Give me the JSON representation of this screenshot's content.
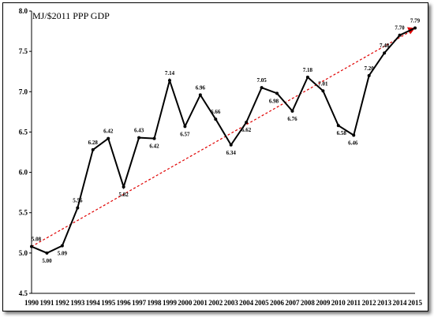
{
  "chart_data": {
    "type": "line",
    "title": "MJ/$2011 PPP GDP",
    "x": [
      "1990",
      "1991",
      "1992",
      "1993",
      "1994",
      "1995",
      "1996",
      "1997",
      "1998",
      "1999",
      "2000",
      "2001",
      "2002",
      "2003",
      "2004",
      "2005",
      "2006",
      "2007",
      "2008",
      "2009",
      "2010",
      "2011",
      "2012",
      "2013",
      "2014",
      "2015"
    ],
    "series": [
      {
        "values": [
          5.08,
          5.0,
          5.09,
          5.56,
          6.28,
          6.42,
          5.82,
          6.43,
          6.42,
          7.14,
          6.57,
          6.96,
          6.66,
          6.34,
          6.62,
          7.05,
          6.98,
          6.76,
          7.18,
          7.01,
          6.58,
          6.46,
          7.2,
          7.48,
          7.7,
          7.79
        ],
        "labels": [
          "5.08",
          "5.00",
          "5.09",
          "5.56",
          "6.28",
          "6.42",
          "5.82",
          "6.43",
          "6.42",
          "7.14",
          "6.57",
          "6.96",
          "6.66",
          "6.34",
          "6.62",
          "7.05",
          "6.98",
          "6.76",
          "7.18",
          "7.01",
          "6.58",
          "6.46",
          "7.20",
          "7.48",
          "7.70",
          "7.79"
        ],
        "color": "#000000"
      }
    ],
    "trend": {
      "from": [
        1990,
        5.08
      ],
      "to": [
        2015,
        7.79
      ],
      "color": "#e00000",
      "style": "dashed"
    },
    "ylim": [
      4.5,
      8.0
    ],
    "yticks": [
      "4.5",
      "5.0",
      "5.5",
      "6.0",
      "6.5",
      "7.0",
      "7.5",
      "8.0"
    ],
    "xlabel": "",
    "ylabel": "",
    "grid": false,
    "legend": "none"
  }
}
